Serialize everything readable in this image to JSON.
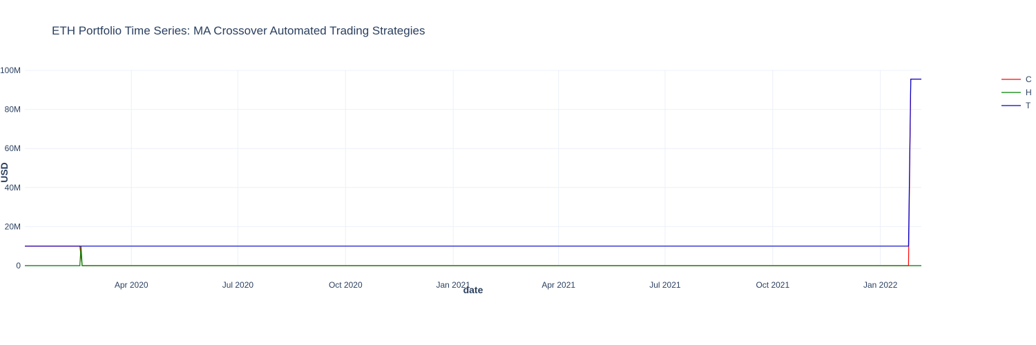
{
  "chart_data": {
    "type": "line",
    "title": "ETH Portfolio Time Series: MA Crossover Automated Trading Strategies",
    "xlabel": "date",
    "ylabel": "USD",
    "xlim": [
      "2020-01-01",
      "2022-02-05"
    ],
    "ylim": [
      0,
      100000000
    ],
    "x_ticks": [
      {
        "date": "2020-04-01",
        "label": "Apr 2020"
      },
      {
        "date": "2020-07-01",
        "label": "Jul 2020"
      },
      {
        "date": "2020-10-01",
        "label": "Oct 2020"
      },
      {
        "date": "2021-01-01",
        "label": "Jan 2021"
      },
      {
        "date": "2021-04-01",
        "label": "Apr 2021"
      },
      {
        "date": "2021-07-01",
        "label": "Jul 2021"
      },
      {
        "date": "2021-10-01",
        "label": "Oct 2021"
      },
      {
        "date": "2022-01-01",
        "label": "Jan 2022"
      }
    ],
    "y_ticks": [
      {
        "value": 0,
        "label": "0"
      },
      {
        "value": 20000000,
        "label": "20M"
      },
      {
        "value": 40000000,
        "label": "40M"
      },
      {
        "value": 60000000,
        "label": "60M"
      },
      {
        "value": 80000000,
        "label": "80M"
      },
      {
        "value": 100000000,
        "label": "100M"
      }
    ],
    "grid": true,
    "legend_position": "top-right",
    "series": [
      {
        "name": "C",
        "color": "#ff0000",
        "points": [
          [
            "2020-01-01",
            10000000
          ],
          [
            "2020-02-17",
            10000000
          ],
          [
            "2020-02-19",
            0
          ],
          [
            "2022-01-25",
            0
          ],
          [
            "2022-01-27",
            95500000
          ],
          [
            "2022-02-05",
            95500000
          ]
        ]
      },
      {
        "name": "H",
        "color": "#008000",
        "points": [
          [
            "2020-01-01",
            0
          ],
          [
            "2020-02-17",
            0
          ],
          [
            "2020-02-18",
            10000000
          ],
          [
            "2020-02-19",
            0
          ],
          [
            "2022-01-25",
            0
          ],
          [
            "2022-01-27",
            0
          ],
          [
            "2022-02-05",
            0
          ]
        ]
      },
      {
        "name": "T",
        "color": "#0000cd",
        "points": [
          [
            "2020-01-01",
            10000000
          ],
          [
            "2022-01-25",
            10000000
          ],
          [
            "2022-01-27",
            95500000
          ],
          [
            "2022-02-05",
            95500000
          ]
        ]
      }
    ]
  }
}
